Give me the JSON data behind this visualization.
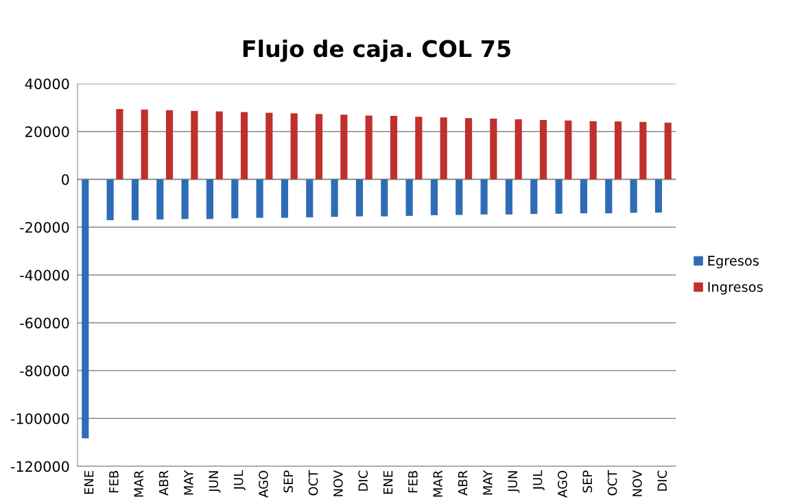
{
  "chart_data": {
    "type": "bar",
    "title": "Flujo de caja. COL 75",
    "categories": [
      "ENE",
      "FEB",
      "MAR",
      "ABR",
      "MAY",
      "JUN",
      "JUL",
      "AGO",
      "SEP",
      "OCT",
      "NOV",
      "DIC",
      "ENE",
      "FEB",
      "MAR",
      "ABR",
      "MAY",
      "JUN",
      "JUL",
      "AGO",
      "SEP",
      "OCT",
      "NOV",
      "DIC"
    ],
    "series": [
      {
        "name": "Egresos",
        "color": "#2e6db5",
        "values": [
          -108300,
          -17100,
          -17100,
          -16800,
          -16600,
          -16600,
          -16300,
          -16100,
          -16100,
          -15900,
          -15700,
          -15500,
          -15500,
          -15300,
          -15000,
          -14900,
          -14700,
          -14700,
          -14500,
          -14400,
          -14200,
          -14200,
          -14000,
          -13900
        ]
      },
      {
        "name": "Ingresos",
        "color": "#c0302c",
        "values": [
          null,
          29400,
          29200,
          28900,
          28600,
          28400,
          28100,
          27800,
          27600,
          27300,
          27000,
          26700,
          26500,
          26200,
          25900,
          25600,
          25400,
          25100,
          24800,
          24600,
          24300,
          24200,
          24000,
          23700
        ]
      }
    ],
    "ylim": [
      -120000,
      40000
    ],
    "yticks": [
      -120000,
      -100000,
      -80000,
      -60000,
      -40000,
      -20000,
      0,
      20000,
      40000
    ],
    "grid": "y",
    "legend": "right"
  }
}
